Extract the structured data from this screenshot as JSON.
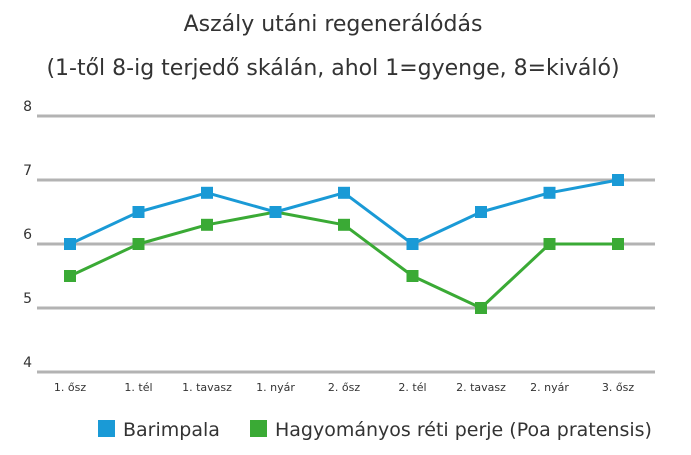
{
  "chart_data": {
    "type": "line",
    "title": "Aszály utáni regenerálódás",
    "subtitle": "(1-től 8-ig terjedő skálán, ahol 1=gyenge, 8=kiváló)",
    "xlabel": "",
    "ylabel": "",
    "categories": [
      "1. ősz",
      "1. tél",
      "1. tavasz",
      "1. nyár",
      "2. ősz",
      "2. tél",
      "2. tavasz",
      "2. nyár",
      "3. ősz"
    ],
    "ylim": [
      4,
      8
    ],
    "yticks": [
      "4",
      "5",
      "6",
      "7",
      "8"
    ],
    "grid": true,
    "legend_position": "bottom",
    "series": [
      {
        "name": "Barimpala",
        "color": "#1a9ad6",
        "values": [
          6.0,
          6.5,
          6.8,
          6.5,
          6.8,
          6.0,
          6.5,
          6.8,
          7.0
        ]
      },
      {
        "name": "Hagyományos réti perje (Poa pratensis)",
        "color": "#3aaa35",
        "values": [
          5.5,
          6.0,
          6.3,
          6.5,
          6.3,
          5.5,
          5.0,
          6.0,
          6.0
        ]
      }
    ]
  }
}
